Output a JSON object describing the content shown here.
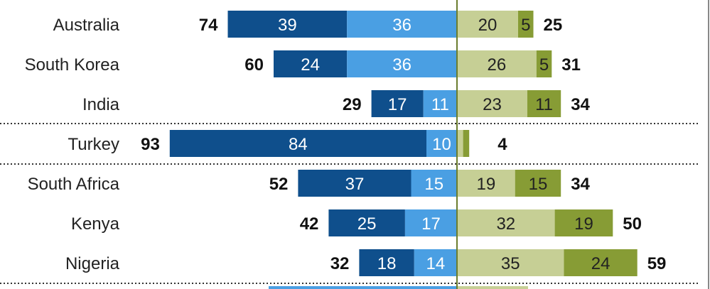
{
  "chart_data": {
    "type": "bar",
    "orientation": "horizontal-diverging",
    "title": "",
    "xlabel": "",
    "ylabel": "",
    "categories": [
      "Australia",
      "South Korea",
      "India",
      "Turkey",
      "South Africa",
      "Kenya",
      "Nigeria"
    ],
    "groups": [
      [
        "Australia",
        "South Korea",
        "India"
      ],
      [
        "Turkey"
      ],
      [
        "South Africa",
        "Kenya",
        "Nigeria"
      ]
    ],
    "left_totals": [
      74,
      60,
      29,
      93,
      52,
      42,
      32
    ],
    "right_totals": [
      25,
      31,
      34,
      4,
      34,
      50,
      59
    ],
    "series": [
      {
        "side": "left",
        "color": "#0f4f8c",
        "values": [
          39,
          24,
          17,
          84,
          37,
          25,
          18
        ]
      },
      {
        "side": "left",
        "color": "#4a9fe3",
        "values": [
          36,
          36,
          11,
          10,
          15,
          17,
          14
        ]
      },
      {
        "side": "right",
        "color": "#c6cf95",
        "values": [
          20,
          26,
          23,
          null,
          19,
          32,
          35
        ]
      },
      {
        "side": "right",
        "color": "#879c35",
        "values": [
          5,
          5,
          11,
          null,
          15,
          19,
          24
        ]
      }
    ],
    "colors": {
      "left_outer": "#0f4f8c",
      "left_inner": "#4a9fe3",
      "right_inner": "#c6cf95",
      "right_outer": "#879c35",
      "center_line": "#6b7d2e",
      "separator": "#333333"
    },
    "legend": "none",
    "grid": false
  }
}
